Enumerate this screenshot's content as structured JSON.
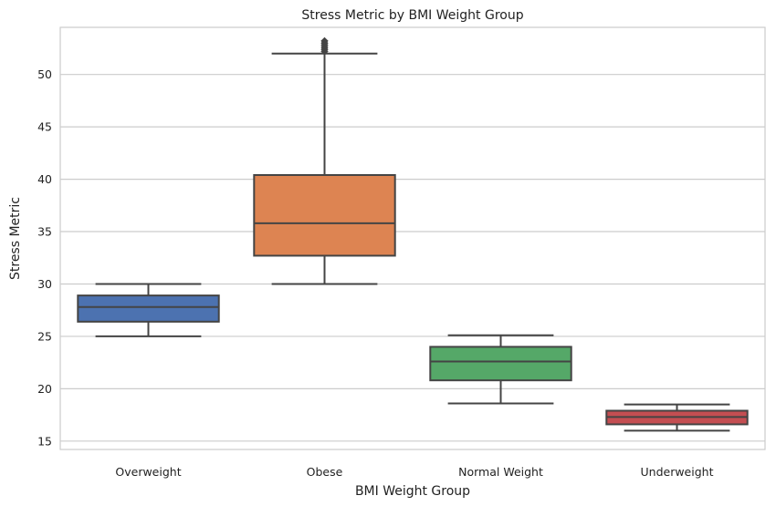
{
  "chart_data": {
    "type": "box",
    "title": "Stress Metric by BMI Weight Group",
    "xlabel": "BMI Weight Group",
    "ylabel": "Stress Metric",
    "ylim": [
      14.2,
      54.5
    ],
    "yticks": [
      15,
      20,
      25,
      30,
      35,
      40,
      45,
      50
    ],
    "grid": "horizontal",
    "categories": [
      "Overweight",
      "Obese",
      "Normal Weight",
      "Underweight"
    ],
    "boxes": [
      {
        "category": "Overweight",
        "whisker_low": 25.0,
        "q1": 26.4,
        "median": 27.8,
        "q3": 28.9,
        "whisker_high": 30.0,
        "outliers": [],
        "color": "#4c72b0"
      },
      {
        "category": "Obese",
        "whisker_low": 30.0,
        "q1": 32.7,
        "median": 35.8,
        "q3": 40.4,
        "whisker_high": 52.0,
        "outliers": [
          52.2,
          52.4,
          52.6,
          52.8,
          53.0,
          53.2
        ],
        "color": "#dd8452"
      },
      {
        "category": "Normal Weight",
        "whisker_low": 18.6,
        "q1": 20.8,
        "median": 22.6,
        "q3": 24.0,
        "whisker_high": 25.1,
        "outliers": [],
        "color": "#55a868"
      },
      {
        "category": "Underweight",
        "whisker_low": 16.0,
        "q1": 16.6,
        "median": 17.3,
        "q3": 17.9,
        "whisker_high": 18.5,
        "outliers": [],
        "color": "#c44e52"
      }
    ]
  }
}
